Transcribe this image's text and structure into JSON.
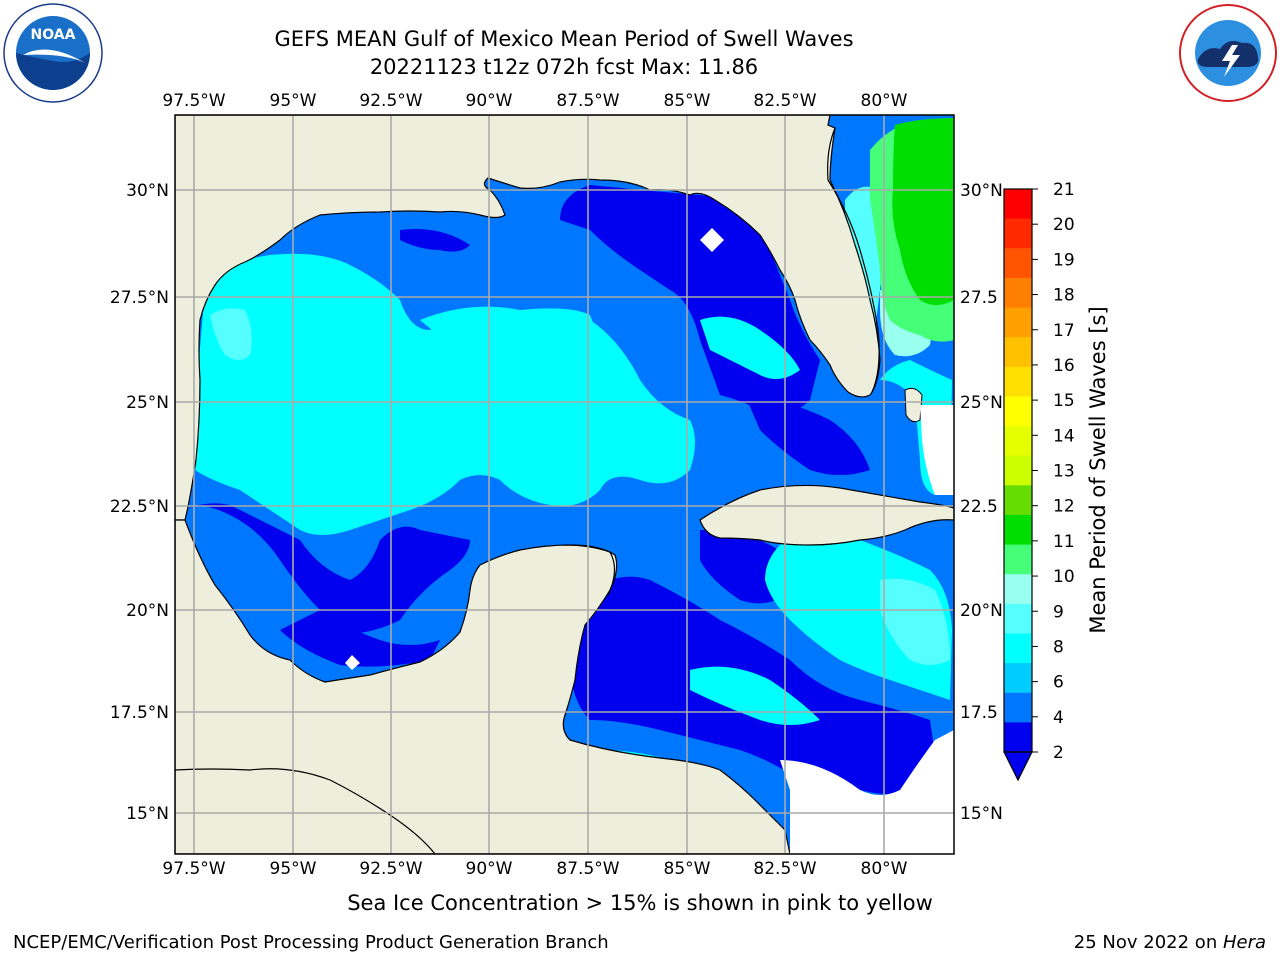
{
  "title": {
    "line1": "GEFS MEAN Gulf of Mexico Mean Period of Swell Waves",
    "line2": "20221123 t12z 072h fcst   Max: 11.86"
  },
  "lon_labels": [
    "97.5°W",
    "95°W",
    "92.5°W",
    "90°W",
    "87.5°W",
    "85°W",
    "82.5°W",
    "80°W"
  ],
  "lat_labels_left": [
    "30°N",
    "27.5°N",
    "25°N",
    "22.5°N",
    "20°N",
    "17.5°N",
    "15°N"
  ],
  "lat_labels_right": [
    "30°N",
    "27.5",
    "25°N",
    "22.5",
    "20°N",
    "17.5",
    "15°N"
  ],
  "colorbar": {
    "label": "Mean Period of Swell Waves [s]",
    "ticks": [
      "21",
      "20",
      "19",
      "18",
      "17",
      "16",
      "15",
      "14",
      "13",
      "12",
      "11",
      "10",
      "9",
      "8",
      "6",
      "4",
      "2"
    ],
    "colors_top_to_bottom": [
      "#ff0000",
      "#ff2a00",
      "#ff5500",
      "#ff7f00",
      "#ff9f00",
      "#ffc000",
      "#ffe000",
      "#ffff00",
      "#e6ff00",
      "#ccff00",
      "#66dd00",
      "#00dd00",
      "#44ff77",
      "#99ffee",
      "#55ffff",
      "#00ffff",
      "#00ccff",
      "#0077ff",
      "#0000ee"
    ]
  },
  "colors": {
    "land": "#eeeedd",
    "level_2_4": "#0077ff",
    "level_4_6": "#00ffff",
    "below_2": "#0000ee",
    "level_6_8": "#55ffff",
    "level_9_10": "#44ff77",
    "level_10_11": "#00dd00"
  },
  "ice_note": "Sea Ice Concentration > 15% is shown in pink to yellow",
  "footer": {
    "credit": "NCEP/EMC/Verification Post Processing Product Generation Branch",
    "date_prefix": "25 Nov 2022 on ",
    "date_host": "Hera"
  },
  "logos": {
    "left": "noaa-logo",
    "right": "nws-logo"
  }
}
